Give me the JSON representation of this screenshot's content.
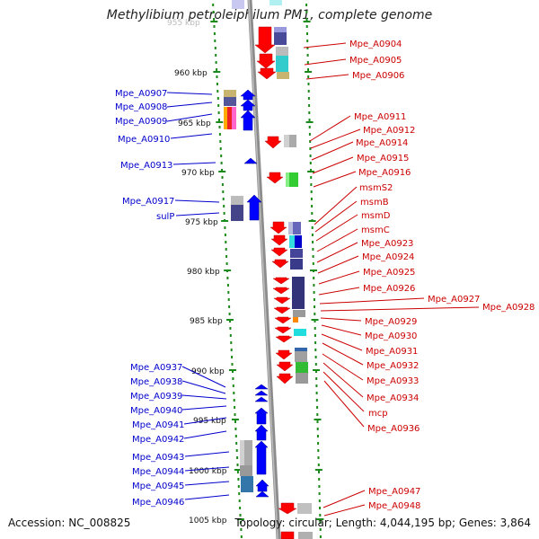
{
  "title": "Methylibium petroleiphilum PM1, complete genome",
  "footer": {
    "accession": "Accession: NC_008825",
    "topology": "Topology: circular; Length: 4,044,195 bp; Genes: 3,864"
  },
  "colors": {
    "plus_strand": "#ff0000",
    "minus_strand": "#0000ff",
    "backbone": "#888888",
    "tick": "#1a8a1a"
  },
  "kbp_labels": [
    "955 kbp",
    "960 kbp",
    "965 kbp",
    "970 kbp",
    "975 kbp",
    "980 kbp",
    "985 kbp",
    "990 kbp",
    "995 kbp",
    "1000 kbp",
    "1005 kbp"
  ],
  "left_genes": [
    "Mpe_A0907",
    "Mpe_A0908",
    "Mpe_A0909",
    "Mpe_A0910",
    "Mpe_A0913",
    "Mpe_A0917",
    "sulP",
    "Mpe_A0937",
    "Mpe_A0938",
    "Mpe_A0939",
    "Mpe_A0940",
    "Mpe_A0941",
    "Mpe_A0942",
    "Mpe_A0943",
    "Mpe_A0944",
    "Mpe_A0945",
    "Mpe_A0946"
  ],
  "right_genes": [
    "Mpe_A0904",
    "Mpe_A0905",
    "Mpe_A0906",
    "Mpe_A0911",
    "Mpe_A0912",
    "Mpe_A0914",
    "Mpe_A0915",
    "Mpe_A0916",
    "msmS2",
    "msmB",
    "msmD",
    "msmC",
    "Mpe_A0923",
    "Mpe_A0924",
    "Mpe_A0925",
    "Mpe_A0926",
    "Mpe_A0927",
    "Mpe_A0928",
    "Mpe_A0929",
    "Mpe_A0930",
    "Mpe_A0931",
    "Mpe_A0932",
    "Mpe_A0933",
    "Mpe_A0934",
    "mcp",
    "Mpe_A0936",
    "Mpe_A0947",
    "Mpe_A0948"
  ]
}
